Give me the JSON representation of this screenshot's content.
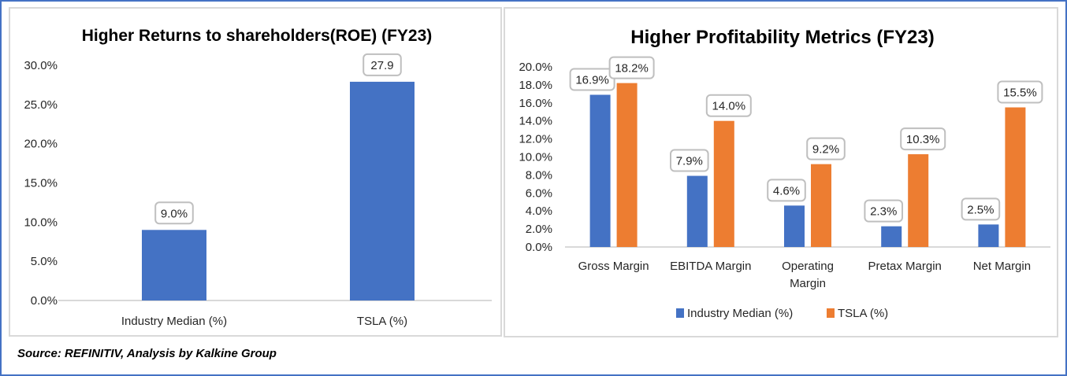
{
  "source": "Source: REFINITIV, Analysis by Kalkine Group",
  "colors": {
    "frame": "#4472c4",
    "industry": "#4472c4",
    "tsla": "#ed7d31",
    "axis": "#d9d9d9"
  },
  "chart_data": [
    {
      "type": "bar",
      "title": "Higher Returns to shareholders(ROE) (FY23)",
      "xlabel": "",
      "ylabel": "",
      "ylim": [
        0,
        30
      ],
      "yticks": [
        "0.0%",
        "5.0%",
        "10.0%",
        "15.0%",
        "20.0%",
        "25.0%",
        "30.0%"
      ],
      "ytick_values": [
        0,
        5,
        10,
        15,
        20,
        25,
        30
      ],
      "grid": false,
      "categories": [
        "Industry Median (%)",
        "TSLA (%)"
      ],
      "values": [
        9.0,
        27.9
      ],
      "data_labels": [
        "9.0%",
        "27.9"
      ]
    },
    {
      "type": "bar",
      "title": "Higher Profitability Metrics (FY23)",
      "xlabel": "",
      "ylabel": "",
      "ylim": [
        0,
        20
      ],
      "yticks": [
        "0.0%",
        "2.0%",
        "4.0%",
        "6.0%",
        "8.0%",
        "10.0%",
        "12.0%",
        "14.0%",
        "16.0%",
        "18.0%",
        "20.0%"
      ],
      "ytick_values": [
        0,
        2,
        4,
        6,
        8,
        10,
        12,
        14,
        16,
        18,
        20
      ],
      "grid": false,
      "legend_position": "bottom",
      "categories": [
        "Gross Margin",
        "EBITDA Margin",
        "Operating Margin",
        "Pretax Margin",
        "Net Margin"
      ],
      "category_lines": [
        [
          "Gross Margin"
        ],
        [
          "EBITDA Margin"
        ],
        [
          "Operating",
          "Margin"
        ],
        [
          "Pretax Margin"
        ],
        [
          "Net Margin"
        ]
      ],
      "series": [
        {
          "name": "Industry Median (%)",
          "values": [
            16.9,
            7.9,
            4.6,
            2.3,
            2.5
          ],
          "data_labels": [
            "16.9%",
            "7.9%",
            "4.6%",
            "2.3%",
            "2.5%"
          ]
        },
        {
          "name": "TSLA (%)",
          "values": [
            18.2,
            14.0,
            9.2,
            10.3,
            15.5
          ],
          "data_labels": [
            "18.2%",
            "14.0%",
            "9.2%",
            "10.3%",
            "15.5%"
          ]
        }
      ]
    }
  ]
}
